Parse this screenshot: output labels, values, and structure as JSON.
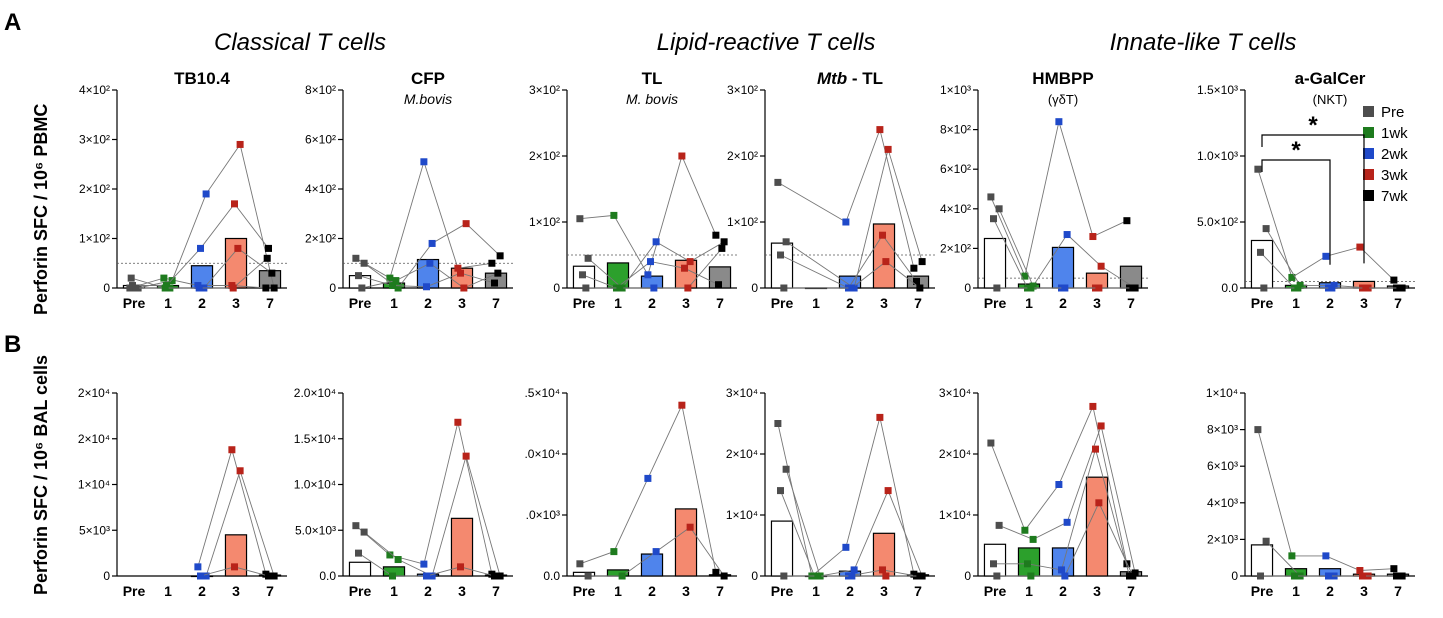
{
  "figure": {
    "panel_labels": [
      "A",
      "B"
    ],
    "group_titles": [
      "Classical T cells",
      "Lipid-reactive T cells",
      "Innate-like T cells"
    ],
    "ylabel_A": "Perforin SFC / 10⁶ PBMC",
    "ylabel_B": "Perforin SFC / 10⁶ BAL cells"
  },
  "legend": [
    {
      "label": "Pre",
      "color": "#4d4d4d"
    },
    {
      "label": "1wk",
      "color": "#1e7b1e"
    },
    {
      "label": "2wk",
      "color": "#1f49c9"
    },
    {
      "label": "3wk",
      "color": "#b8231a"
    },
    {
      "label": "7wk",
      "color": "#000000"
    }
  ],
  "chart_data": [
    {
      "type": "bar",
      "row": "A",
      "title": "TB10.4",
      "subtitle": "",
      "categories": [
        "Pre",
        "1",
        "2",
        "3",
        "7"
      ],
      "ylim": [
        0,
        400
      ],
      "yticks": [
        0,
        100,
        200,
        300,
        400
      ],
      "yticklabels": [
        "0",
        "1×10²",
        "2×10²",
        "3×10²",
        "4×10²"
      ],
      "threshold": 50,
      "values": [
        5,
        5,
        45,
        100,
        35
      ],
      "points": [
        [
          0,
          20,
          5,
          5,
          0
        ],
        [
          0,
          15,
          190,
          290,
          0
        ],
        [
          5,
          5,
          80,
          170,
          80
        ],
        [
          0,
          0,
          0,
          80,
          30
        ],
        [
          20,
          0,
          0,
          0,
          60
        ]
      ]
    },
    {
      "type": "bar",
      "row": "A",
      "title": "CFP",
      "subtitle": "M.bovis",
      "categories": [
        "Pre",
        "1",
        "2",
        "3",
        "7"
      ],
      "ylim": [
        0,
        800
      ],
      "yticks": [
        0,
        200,
        400,
        600,
        800
      ],
      "yticklabels": [
        "0",
        "2×10²",
        "4×10²",
        "6×10²",
        "8×10²"
      ],
      "threshold": 100,
      "values": [
        50,
        20,
        115,
        80,
        60
      ],
      "points": [
        [
          120,
          40,
          510,
          80,
          100
        ],
        [
          100,
          0,
          180,
          260,
          130
        ],
        [
          50,
          10,
          5,
          60,
          20
        ],
        [
          0,
          30,
          100,
          0,
          60
        ]
      ]
    },
    {
      "type": "bar",
      "row": "A",
      "title": "TL",
      "subtitle": "M. bovis",
      "categories": [
        "Pre",
        "1",
        "2",
        "3",
        "7"
      ],
      "ylim": [
        0,
        300
      ],
      "yticks": [
        0,
        100,
        200,
        300
      ],
      "yticklabels": [
        "0",
        "1×10²",
        "2×10²",
        "3×10²"
      ],
      "threshold": 50,
      "values": [
        33,
        38,
        18,
        42,
        32
      ],
      "points": [
        [
          105,
          110,
          20,
          200,
          80
        ],
        [
          45,
          0,
          70,
          40,
          70
        ],
        [
          20,
          0,
          40,
          30,
          5
        ],
        [
          0,
          0,
          0,
          0,
          60
        ]
      ]
    },
    {
      "type": "bar",
      "row": "A",
      "title": "Mtb - TL",
      "subtitle": "",
      "categories": [
        "Pre",
        "1",
        "2",
        "3",
        "7"
      ],
      "ylim": [
        0,
        300
      ],
      "yticks": [
        0,
        100,
        200,
        300
      ],
      "yticklabels": [
        "0",
        "1×10²",
        "2×10²",
        "3×10²"
      ],
      "threshold": 50,
      "values": [
        68,
        0,
        18,
        97,
        18
      ],
      "points": [
        [
          160,
          null,
          100,
          240,
          30
        ],
        [
          70,
          null,
          0,
          210,
          40
        ],
        [
          50,
          null,
          0,
          80,
          10
        ],
        [
          0,
          null,
          0,
          40,
          0
        ]
      ]
    },
    {
      "type": "bar",
      "row": "A",
      "title": "HMBPP",
      "subtitle": "(γδT)",
      "categories": [
        "Pre",
        "1",
        "2",
        "3",
        "7"
      ],
      "ylim": [
        0,
        1000
      ],
      "yticks": [
        0,
        200,
        400,
        600,
        800,
        1000
      ],
      "yticklabels": [
        "0",
        "2×10²",
        "4×10²",
        "6×10²",
        "8×10²",
        "1×10³"
      ],
      "threshold": 50,
      "values": [
        250,
        20,
        205,
        75,
        110
      ],
      "points": [
        [
          460,
          60,
          840,
          260,
          340
        ],
        [
          400,
          10,
          270,
          110,
          0
        ],
        [
          350,
          0,
          0,
          0,
          0
        ],
        [
          0,
          0,
          0,
          0,
          0
        ]
      ]
    },
    {
      "type": "bar",
      "row": "A",
      "title": "a-GalCer",
      "subtitle": "(NKT)",
      "categories": [
        "Pre",
        "1",
        "2",
        "3",
        "7"
      ],
      "ylim": [
        0,
        1500
      ],
      "yticks": [
        0,
        500,
        1000,
        1500
      ],
      "yticklabels": [
        "0.0",
        "5.0×10²",
        "1.0×10³",
        "1.5×10³"
      ],
      "threshold": 50,
      "values": [
        360,
        20,
        40,
        50,
        15
      ],
      "points": [
        [
          900,
          80,
          240,
          310,
          60
        ],
        [
          450,
          20,
          20,
          0,
          0
        ],
        [
          270,
          0,
          0,
          0,
          0
        ],
        [
          0,
          0,
          0,
          0,
          0
        ]
      ],
      "significance": [
        {
          "from": "Pre",
          "to": "2",
          "label": "*"
        },
        {
          "from": "Pre",
          "to": "3",
          "label": "*"
        }
      ]
    },
    {
      "type": "bar",
      "row": "B",
      "title": "",
      "subtitle": "",
      "categories": [
        "Pre",
        "1",
        "2",
        "3",
        "7"
      ],
      "ylim": [
        0,
        20000
      ],
      "yticks": [
        0,
        5000,
        10000,
        15000,
        20000
      ],
      "yticklabels": [
        "0",
        "5×10³",
        "1×10⁴",
        "2×10⁴",
        "2×10⁴"
      ],
      "values": [
        null,
        null,
        0,
        4500,
        100
      ],
      "points": [
        [
          null,
          null,
          1000,
          13800,
          200
        ],
        [
          null,
          null,
          0,
          11500,
          0
        ],
        [
          null,
          null,
          0,
          1000,
          0
        ]
      ]
    },
    {
      "type": "bar",
      "row": "B",
      "title": "",
      "subtitle": "",
      "categories": [
        "Pre",
        "1",
        "2",
        "3",
        "7"
      ],
      "ylim": [
        0,
        20000
      ],
      "yticks": [
        0,
        5000,
        10000,
        15000,
        20000
      ],
      "yticklabels": [
        "0.0",
        "5.0×10³",
        "1.0×10⁴",
        "1.5×10⁴",
        "2.0×10⁴"
      ],
      "values": [
        1500,
        1000,
        200,
        6300,
        100
      ],
      "points": [
        [
          5500,
          2300,
          1300,
          16800,
          200
        ],
        [
          4800,
          1800,
          0,
          13100,
          0
        ],
        [
          2500,
          0,
          0,
          1000,
          0
        ]
      ]
    },
    {
      "type": "bar",
      "row": "B",
      "title": "",
      "subtitle": "",
      "categories": [
        "Pre",
        "1",
        "2",
        "3",
        "7"
      ],
      "ylim": [
        0,
        15000
      ],
      "yticks": [
        0,
        5000,
        10000,
        15000
      ],
      "yticklabels": [
        "0.0",
        ".0×10³",
        ".0×10⁴",
        ".5×10⁴"
      ],
      "values": [
        300,
        500,
        1800,
        5500,
        100
      ],
      "points": [
        [
          1000,
          2000,
          8000,
          14000,
          300
        ],
        [
          0,
          0,
          2000,
          4000,
          0
        ]
      ]
    },
    {
      "type": "bar",
      "row": "B",
      "title": "",
      "subtitle": "",
      "categories": [
        "Pre",
        "1",
        "2",
        "3",
        "7"
      ],
      "ylim": [
        0,
        30000
      ],
      "yticks": [
        0,
        10000,
        20000,
        30000
      ],
      "yticklabels": [
        "0",
        "1×10⁴",
        "2×10⁴",
        "3×10⁴"
      ],
      "values": [
        9000,
        0,
        800,
        7000,
        200
      ],
      "points": [
        [
          25000,
          0,
          4700,
          26000,
          300
        ],
        [
          17500,
          0,
          1000,
          14000,
          0
        ],
        [
          14000,
          0,
          0,
          1000,
          0
        ],
        [
          0,
          0,
          0,
          0,
          0
        ]
      ]
    },
    {
      "type": "bar",
      "row": "B",
      "title": "",
      "subtitle": "",
      "categories": [
        "Pre",
        "1",
        "2",
        "3",
        "7"
      ],
      "ylim": [
        0,
        30000
      ],
      "yticks": [
        0,
        10000,
        20000,
        30000
      ],
      "yticklabels": [
        "0",
        "1×10⁴",
        "2×10⁴",
        "3×10⁴"
      ],
      "values": [
        5200,
        4600,
        4600,
        16200,
        700
      ],
      "points": [
        [
          21800,
          7500,
          15000,
          27800,
          2000
        ],
        [
          8300,
          6000,
          8800,
          24600,
          500
        ],
        [
          2000,
          2000,
          1000,
          20800,
          0
        ],
        [
          0,
          0,
          0,
          12000,
          0
        ]
      ]
    },
    {
      "type": "bar",
      "row": "B",
      "title": "",
      "subtitle": "",
      "categories": [
        "Pre",
        "1",
        "2",
        "3",
        "7"
      ],
      "ylim": [
        0,
        10000
      ],
      "yticks": [
        0,
        2000,
        4000,
        6000,
        8000,
        10000
      ],
      "yticklabels": [
        "0",
        "2×10³",
        "4×10³",
        "6×10³",
        "8×10³",
        "1×10⁴"
      ],
      "values": [
        1700,
        400,
        400,
        100,
        100
      ],
      "points": [
        [
          8000,
          1100,
          1100,
          300,
          400
        ],
        [
          1900,
          0,
          0,
          0,
          0
        ],
        [
          0,
          0,
          0,
          0,
          0
        ]
      ]
    }
  ]
}
